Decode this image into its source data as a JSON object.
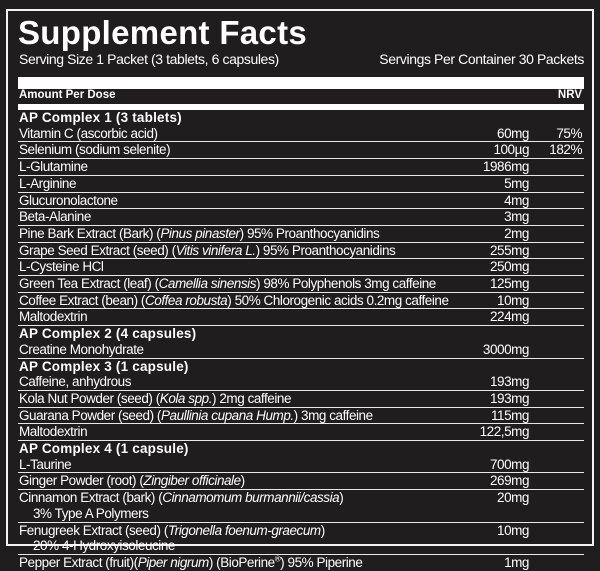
{
  "title": "Supplement Facts",
  "serving_size": "Serving Size 1 Packet (3 tablets, 6 capsules)",
  "servings_per_container": "Servings Per Container 30 Packets",
  "amount_header": "Amount Per Dose",
  "nrv_header": "NRV",
  "rows": [
    {
      "type": "header",
      "label": "AP Complex 1 (3 tablets)"
    },
    {
      "type": "item",
      "name": [
        {
          "t": "Vitamin C (ascorbic acid)"
        }
      ],
      "amount": "60mg",
      "nrv": "75%"
    },
    {
      "type": "item",
      "name": [
        {
          "t": "Selenium (sodium selenite)"
        }
      ],
      "amount": "100µg",
      "nrv": "182%"
    },
    {
      "type": "item",
      "name": [
        {
          "t": "L-Glutamine"
        }
      ],
      "amount": "1986mg"
    },
    {
      "type": "item",
      "name": [
        {
          "t": "L-Arginine"
        }
      ],
      "amount": "5mg"
    },
    {
      "type": "item",
      "name": [
        {
          "t": "Glucuronolactone"
        }
      ],
      "amount": "4mg"
    },
    {
      "type": "item",
      "name": [
        {
          "t": "Beta-Alanine"
        }
      ],
      "amount": "3mg"
    },
    {
      "type": "item",
      "name": [
        {
          "t": "Pine Bark Extract (Bark) ("
        },
        {
          "t": "Pinus pinaster",
          "i": true
        },
        {
          "t": ") 95% Proanthocyanidins"
        }
      ],
      "amount": "2mg"
    },
    {
      "type": "item",
      "name": [
        {
          "t": "Grape Seed Extract (seed) ("
        },
        {
          "t": "Vitis vinifera L.",
          "i": true
        },
        {
          "t": ") 95% Proanthocyanidins"
        }
      ],
      "amount": "255mg"
    },
    {
      "type": "item",
      "name": [
        {
          "t": "L-Cysteine HCl"
        }
      ],
      "amount": "250mg"
    },
    {
      "type": "item",
      "name": [
        {
          "t": "Green Tea Extract (leaf) ("
        },
        {
          "t": "Camellia sinensis",
          "i": true
        },
        {
          "t": ") 98% Polyphenols 3mg caffeine"
        }
      ],
      "amount": "125mg"
    },
    {
      "type": "item",
      "name": [
        {
          "t": "Coffee Extract (bean) ("
        },
        {
          "t": "Coffea robusta",
          "i": true
        },
        {
          "t": ") 50% Chlorogenic acids 0.2mg caffeine"
        }
      ],
      "amount": "10mg"
    },
    {
      "type": "item",
      "name": [
        {
          "t": "Maltodextrin"
        }
      ],
      "amount": "224mg"
    },
    {
      "type": "header",
      "label": "AP Complex 2 (4 capsules)"
    },
    {
      "type": "item",
      "name": [
        {
          "t": "Creatine Monohydrate"
        }
      ],
      "amount": "3000mg"
    },
    {
      "type": "header",
      "label": "AP Complex 3 (1 capsule)"
    },
    {
      "type": "item",
      "name": [
        {
          "t": "Caffeine, anhydrous"
        }
      ],
      "amount": "193mg"
    },
    {
      "type": "item",
      "name": [
        {
          "t": "Kola Nut Powder (seed) ("
        },
        {
          "t": "Kola spp.",
          "i": true
        },
        {
          "t": ") 2mg caffeine"
        }
      ],
      "amount": "193mg"
    },
    {
      "type": "item",
      "name": [
        {
          "t": "Guarana Powder (seed) ("
        },
        {
          "t": "Paullinia cupana Hump.",
          "i": true
        },
        {
          "t": ") 3mg caffeine"
        }
      ],
      "amount": "115mg"
    },
    {
      "type": "item",
      "name": [
        {
          "t": "Maltodextrin"
        }
      ],
      "amount": "122,5mg"
    },
    {
      "type": "header",
      "label": "AP Complex 4 (1 capsule)"
    },
    {
      "type": "item",
      "name": [
        {
          "t": "L-Taurine"
        }
      ],
      "amount": "700mg"
    },
    {
      "type": "item",
      "name": [
        {
          "t": "Ginger Powder (root) ("
        },
        {
          "t": "Zingiber officinale",
          "i": true
        },
        {
          "t": ")"
        }
      ],
      "amount": "269mg"
    },
    {
      "type": "item",
      "name": [
        {
          "t": "Cinnamon Extract (bark) ("
        },
        {
          "t": "Cinnamomum burmannii/cassia",
          "i": true
        },
        {
          "t": ")"
        }
      ],
      "sub": "3% Type A Polymers",
      "amount": "20mg"
    },
    {
      "type": "item",
      "name": [
        {
          "t": "Fenugreek Extract (seed) ("
        },
        {
          "t": "Trigonella foenum-graecum",
          "i": true
        },
        {
          "t": ")"
        }
      ],
      "sub": "20% 4-Hydroxyisoleucine",
      "amount": "10mg"
    },
    {
      "type": "item",
      "name": [
        {
          "t": "Pepper Extract (fruit)("
        },
        {
          "t": "Piper nigrum",
          "i": true
        },
        {
          "t": ") (BioPerine"
        },
        {
          "t": "®",
          "sup": true
        },
        {
          "t": ") 95% Piperine"
        }
      ],
      "amount": "1mg"
    }
  ]
}
